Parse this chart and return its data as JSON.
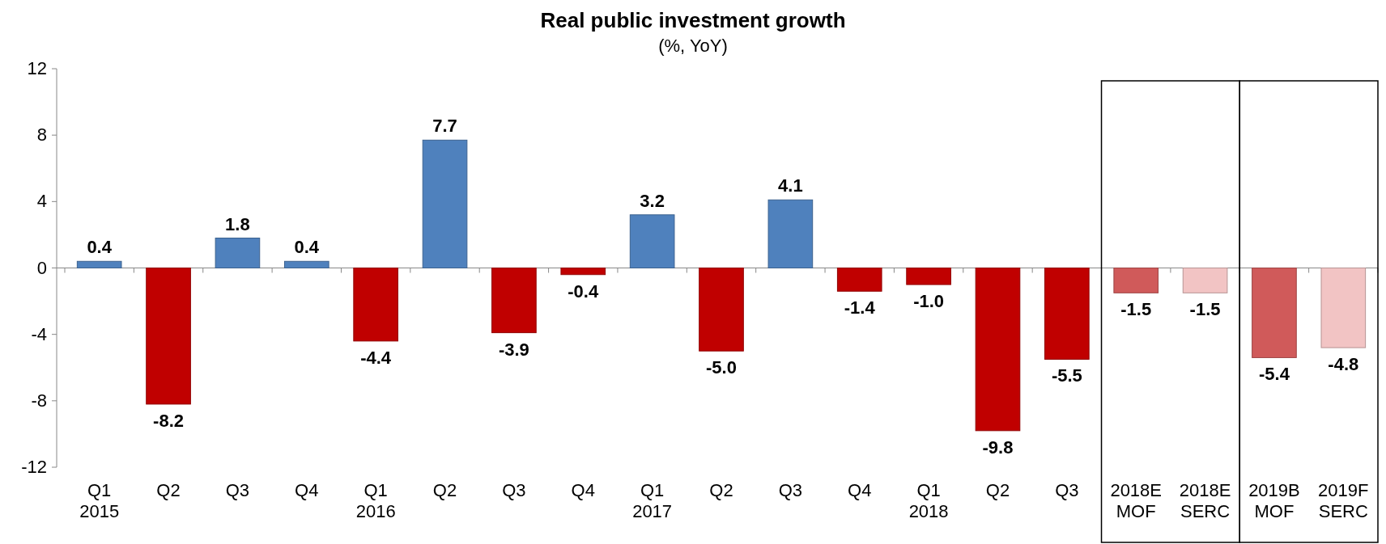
{
  "chart_data": {
    "type": "bar",
    "title": "Real public investment growth",
    "subtitle": "(%, YoY)",
    "categories": [
      "Q1\n2015",
      "Q2",
      "Q3",
      "Q4",
      "Q1\n2016",
      "Q2",
      "Q3",
      "Q4",
      "Q1\n2017",
      "Q2",
      "Q3",
      "Q4",
      "Q1\n2018",
      "Q2",
      "Q3",
      "2018E\nMOF",
      "2018E\nSERC",
      "2019B\nMOF",
      "2019F\nSERC"
    ],
    "values": [
      0.4,
      -8.2,
      1.8,
      0.4,
      -4.4,
      7.7,
      -3.9,
      -0.4,
      3.2,
      -5.0,
      4.1,
      -1.4,
      -1.0,
      -9.8,
      -5.5,
      -1.5,
      -1.5,
      -5.4,
      -4.8
    ],
    "colors": [
      "#4f81bd",
      "#c00000",
      "#4f81bd",
      "#4f81bd",
      "#c00000",
      "#4f81bd",
      "#c00000",
      "#c00000",
      "#4f81bd",
      "#c00000",
      "#4f81bd",
      "#c00000",
      "#c00000",
      "#c00000",
      "#c00000",
      "#d05a5a",
      "#f2c4c4",
      "#d05a5a",
      "#f2c4c4"
    ],
    "value_labels": [
      "0.4",
      "-8.2",
      "1.8",
      "0.4",
      "-4.4",
      "7.7",
      "-3.9",
      "-0.4",
      "3.2",
      "-5.0",
      "4.1",
      "-1.4",
      "-1.0",
      "-9.8",
      "-5.5",
      "-1.5",
      "-1.5",
      "-5.4",
      "-4.8"
    ],
    "ylim": [
      -12,
      12
    ],
    "yticks": [
      -12,
      -8,
      -4,
      0,
      4,
      8,
      12
    ]
  }
}
